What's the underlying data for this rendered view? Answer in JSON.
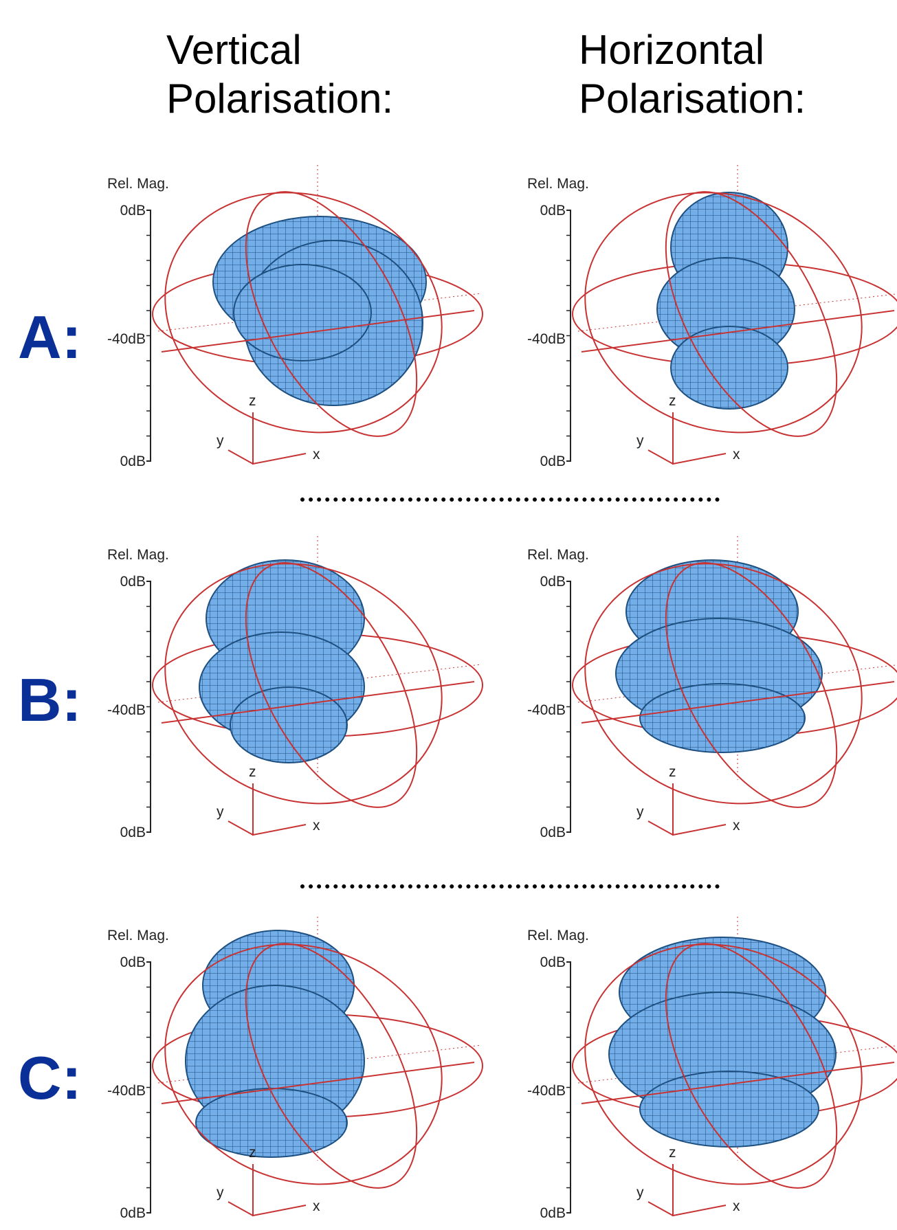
{
  "column_headers": [
    "Vertical Polarisation:",
    "Horizontal Polarisation:"
  ],
  "rows": [
    {
      "label": "A:",
      "panels": [
        {
          "scale_title": "Rel. Mag.",
          "scale_ticks": [
            "0dB",
            "-40dB",
            "0dB"
          ],
          "axes": [
            "z",
            "y",
            "x"
          ]
        },
        {
          "scale_title": "Rel. Mag.",
          "scale_ticks": [
            "0dB",
            "-40dB",
            "0dB"
          ],
          "axes": [
            "z",
            "y",
            "x"
          ]
        }
      ]
    },
    {
      "label": "B:",
      "panels": [
        {
          "scale_title": "Rel. Mag.",
          "scale_ticks": [
            "0dB",
            "-40dB",
            "0dB"
          ],
          "axes": [
            "z",
            "y",
            "x"
          ]
        },
        {
          "scale_title": "Rel. Mag.",
          "scale_ticks": [
            "0dB",
            "-40dB",
            "0dB"
          ],
          "axes": [
            "z",
            "y",
            "x"
          ]
        }
      ]
    },
    {
      "label": "C:",
      "panels": [
        {
          "scale_title": "Rel. Mag.",
          "scale_ticks": [
            "0dB",
            "-40dB",
            "0dB"
          ],
          "axes": [
            "z",
            "y",
            "x"
          ]
        },
        {
          "scale_title": "Rel. Mag.",
          "scale_ticks": [
            "0dB",
            "-40dB",
            "0dB"
          ],
          "axes": [
            "z",
            "y",
            "x"
          ]
        }
      ]
    }
  ]
}
